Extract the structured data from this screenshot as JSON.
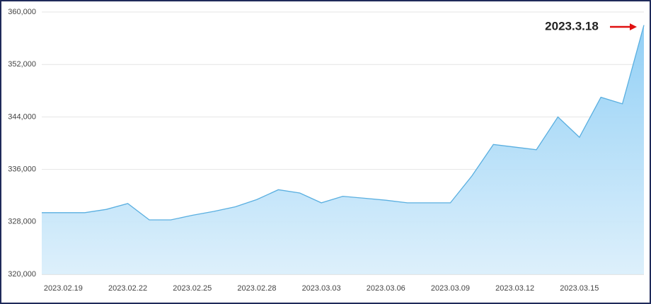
{
  "chart_data": {
    "type": "area",
    "categories": [
      null,
      "2023.02.19",
      null,
      null,
      "2023.02.22",
      null,
      null,
      "2023.02.25",
      null,
      null,
      "2023.02.28",
      null,
      null,
      "2023.03.03",
      null,
      null,
      "2023.03.06",
      null,
      null,
      "2023.03.09",
      null,
      null,
      "2023.03.12",
      null,
      null,
      "2023.03.15",
      null,
      null,
      null
    ],
    "values": [
      329400,
      329400,
      329400,
      329900,
      330800,
      328300,
      328300,
      329000,
      329600,
      330300,
      331400,
      332900,
      332400,
      330900,
      331900,
      331600,
      331300,
      330900,
      330900,
      330900,
      335000,
      339800,
      339400,
      339000,
      344000,
      340900,
      347000,
      346000,
      358000
    ],
    "color": "#5aafe0",
    "ylim": [
      320000,
      360000
    ],
    "yticks": [
      {
        "value": 320000,
        "label": "320,000"
      },
      {
        "value": 328000,
        "label": "328,000"
      },
      {
        "value": 336000,
        "label": "336,000"
      },
      {
        "value": 344000,
        "label": "344,000"
      },
      {
        "value": 352000,
        "label": "352,000"
      },
      {
        "value": 360000,
        "label": "360,000"
      }
    ],
    "grid": true,
    "annotation": "2023.3.18"
  }
}
